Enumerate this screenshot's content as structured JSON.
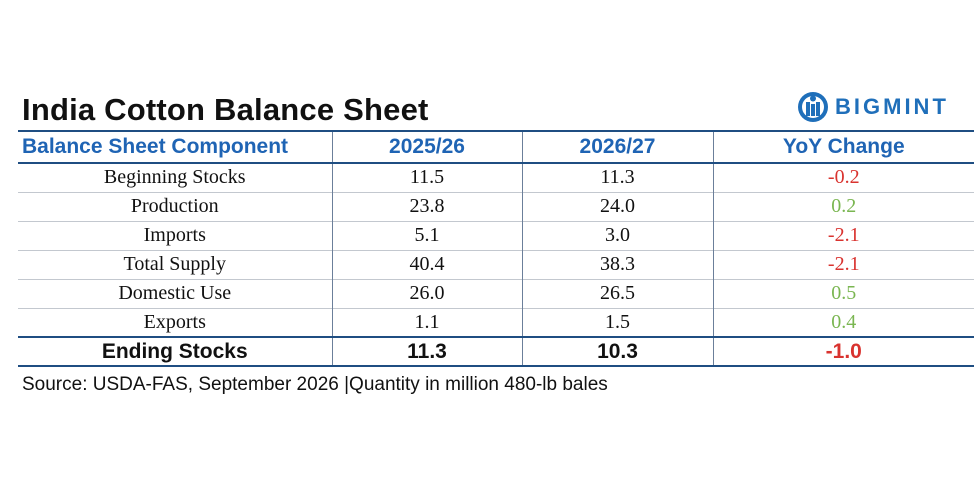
{
  "title": "India Cotton Balance Sheet",
  "logo": {
    "text": "BIGMINT",
    "color": "#1f6fba"
  },
  "table": {
    "headers": [
      "Balance Sheet Component",
      "2025/26",
      "2026/27",
      "YoY Change"
    ],
    "rows": [
      {
        "component": "Beginning Stocks",
        "y2025": "11.5",
        "y2026": "11.3",
        "yoy": "-0.2",
        "trend": "negative"
      },
      {
        "component": "Production",
        "y2025": "23.8",
        "y2026": "24.0",
        "yoy": "0.2",
        "trend": "positive"
      },
      {
        "component": "Imports",
        "y2025": "5.1",
        "y2026": "3.0",
        "yoy": "-2.1",
        "trend": "negative"
      },
      {
        "component": "Total Supply",
        "y2025": "40.4",
        "y2026": "38.3",
        "yoy": "-2.1",
        "trend": "negative"
      },
      {
        "component": "Domestic Use",
        "y2025": "26.0",
        "y2026": "26.5",
        "yoy": "0.5",
        "trend": "positive"
      },
      {
        "component": "Exports",
        "y2025": "1.1",
        "y2026": "1.5",
        "yoy": "0.4",
        "trend": "positive"
      }
    ],
    "total": {
      "component": "Ending Stocks",
      "y2025": "11.3",
      "y2026": "10.3",
      "yoy": "-1.0",
      "trend": "negative"
    }
  },
  "source": "Source: USDA-FAS, September 2026 |Quantity in million 480-lb bales",
  "colors": {
    "header_text": "#1f64b4",
    "rule": "#1f4e82",
    "negative": "#d9332f",
    "positive": "#7ab651"
  }
}
